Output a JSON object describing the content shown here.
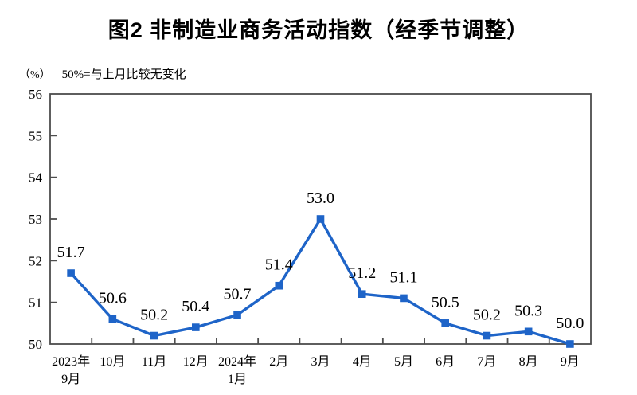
{
  "page": {
    "title": "图2 非制造业商务活动指数（经季节调整）",
    "unit_label": "（%）",
    "note": "50%=与上月比较无变化"
  },
  "colors": {
    "line": "#1E64C8",
    "axis": "#4D4D4D",
    "text": "#000000"
  },
  "chart_data": {
    "type": "line",
    "title": "图2 非制造业商务活动指数（经季节调整）",
    "unit": "（%）",
    "annotation": "50%=与上月比较无变化",
    "categories": [
      [
        "2023年",
        "9月"
      ],
      [
        "10月"
      ],
      [
        "11月"
      ],
      [
        "12月"
      ],
      [
        "2024年",
        "1月"
      ],
      [
        "2月"
      ],
      [
        "3月"
      ],
      [
        "4月"
      ],
      [
        "5月"
      ],
      [
        "6月"
      ],
      [
        "7月"
      ],
      [
        "8月"
      ],
      [
        "9月"
      ]
    ],
    "values": [
      51.7,
      50.6,
      50.2,
      50.4,
      50.7,
      51.4,
      53.0,
      51.2,
      51.1,
      50.5,
      50.2,
      50.3,
      50.0
    ],
    "data_labels": [
      "51.7",
      "50.6",
      "50.2",
      "50.4",
      "50.7",
      "51.4",
      "53.0",
      "51.2",
      "51.1",
      "50.5",
      "50.2",
      "50.3",
      "50.0"
    ],
    "ylim": [
      50,
      56
    ],
    "ytick_step": 1,
    "grid": false,
    "legend": null,
    "marker": "square",
    "line_color": "#1E64C8"
  }
}
